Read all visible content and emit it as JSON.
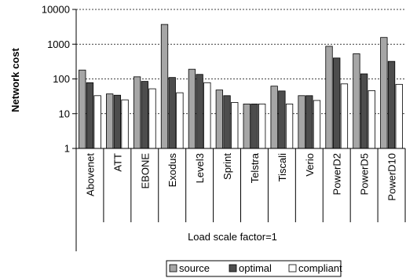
{
  "chart_data": {
    "type": "bar",
    "ylabel": "Network cost",
    "xlabel": "Load scale factor=1",
    "yscale": "log",
    "ylim": [
      1,
      10000
    ],
    "yticks": [
      1,
      10,
      100,
      1000,
      10000
    ],
    "grid": "horizontal dashed",
    "legend_position": "bottom",
    "categories": [
      "Abovenet",
      "ATT",
      "EBONE",
      "Exodus",
      "Level3",
      "Sprint",
      "Telstra",
      "Tiscali",
      "Verio",
      "PowerD2",
      "PowerD5",
      "PowerD10"
    ],
    "series": [
      {
        "name": "source",
        "color": "#a6a6a6",
        "values": [
          180,
          37,
          115,
          3700,
          190,
          48,
          19,
          62,
          33,
          870,
          530,
          1560
        ]
      },
      {
        "name": "optimal",
        "color": "#4d4d4d",
        "values": [
          78,
          34,
          85,
          110,
          135,
          33,
          19,
          45,
          33,
          400,
          140,
          320
        ]
      },
      {
        "name": "compliant",
        "color": "#ffffff",
        "values": [
          33,
          25,
          52,
          40,
          78,
          21,
          19,
          19,
          24,
          72,
          46,
          70
        ]
      }
    ]
  }
}
